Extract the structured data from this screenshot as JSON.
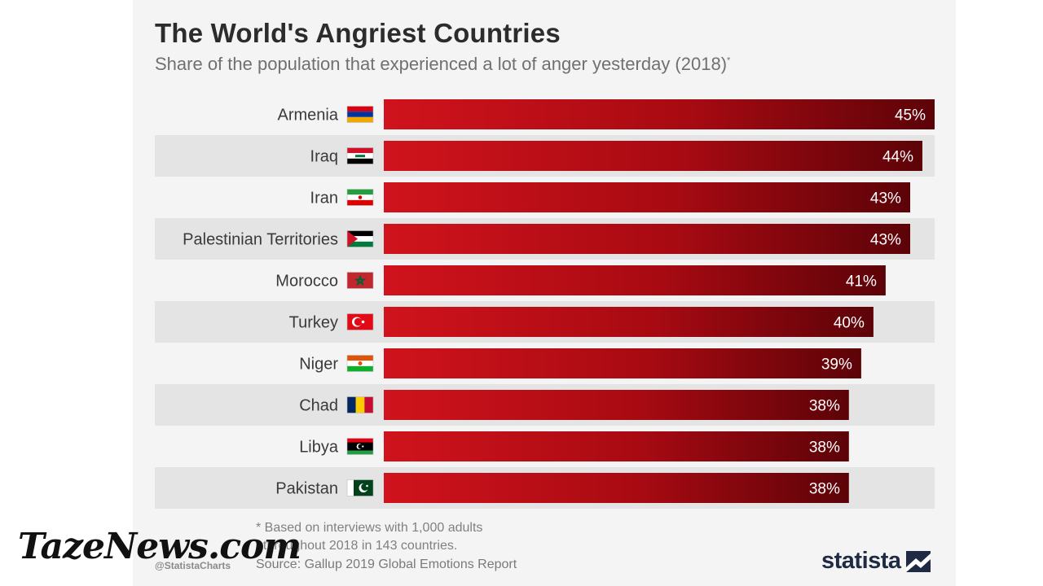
{
  "header": {
    "title": "The World's Angriest Countries",
    "subtitle": "Share of the population that experienced a lot of anger yesterday (2018)",
    "subtitle_mark": "*"
  },
  "chart_data": {
    "type": "bar",
    "orientation": "horizontal",
    "title": "The World's Angriest Countries",
    "subtitle": "Share of the population that experienced a lot of anger yesterday (2018)",
    "unit": "%",
    "xlim": [
      0,
      45
    ],
    "categories": [
      "Armenia",
      "Iraq",
      "Iran",
      "Palestinian Territories",
      "Morocco",
      "Turkey",
      "Niger",
      "Chad",
      "Libya",
      "Pakistan"
    ],
    "values": [
      45,
      44,
      43,
      43,
      41,
      40,
      39,
      38,
      38,
      38
    ],
    "value_labels": [
      "45%",
      "44%",
      "43%",
      "43%",
      "41%",
      "40%",
      "39%",
      "38%",
      "38%",
      "38%"
    ],
    "bar_color": "#c8101a",
    "grid": false
  },
  "flags": [
    "flag-armenia-icon",
    "flag-iraq-icon",
    "flag-iran-icon",
    "flag-palestine-icon",
    "flag-morocco-icon",
    "flag-turkey-icon",
    "flag-niger-icon",
    "flag-chad-icon",
    "flag-libya-icon",
    "flag-pakistan-icon"
  ],
  "footer": {
    "note": "* Based on interviews with 1,000 adults\n  throughout 2018 in 143 countries.",
    "source": "Source: Gallup 2019 Global Emotions Report",
    "handle": "@StatistaCharts",
    "logo": "statista"
  },
  "watermark": "TazeNews.com",
  "colors": {
    "bar_start": "#d0131c",
    "bar_end": "#5c0308",
    "row_alt": "#e4e4e4",
    "title": "#2c2c2c"
  }
}
